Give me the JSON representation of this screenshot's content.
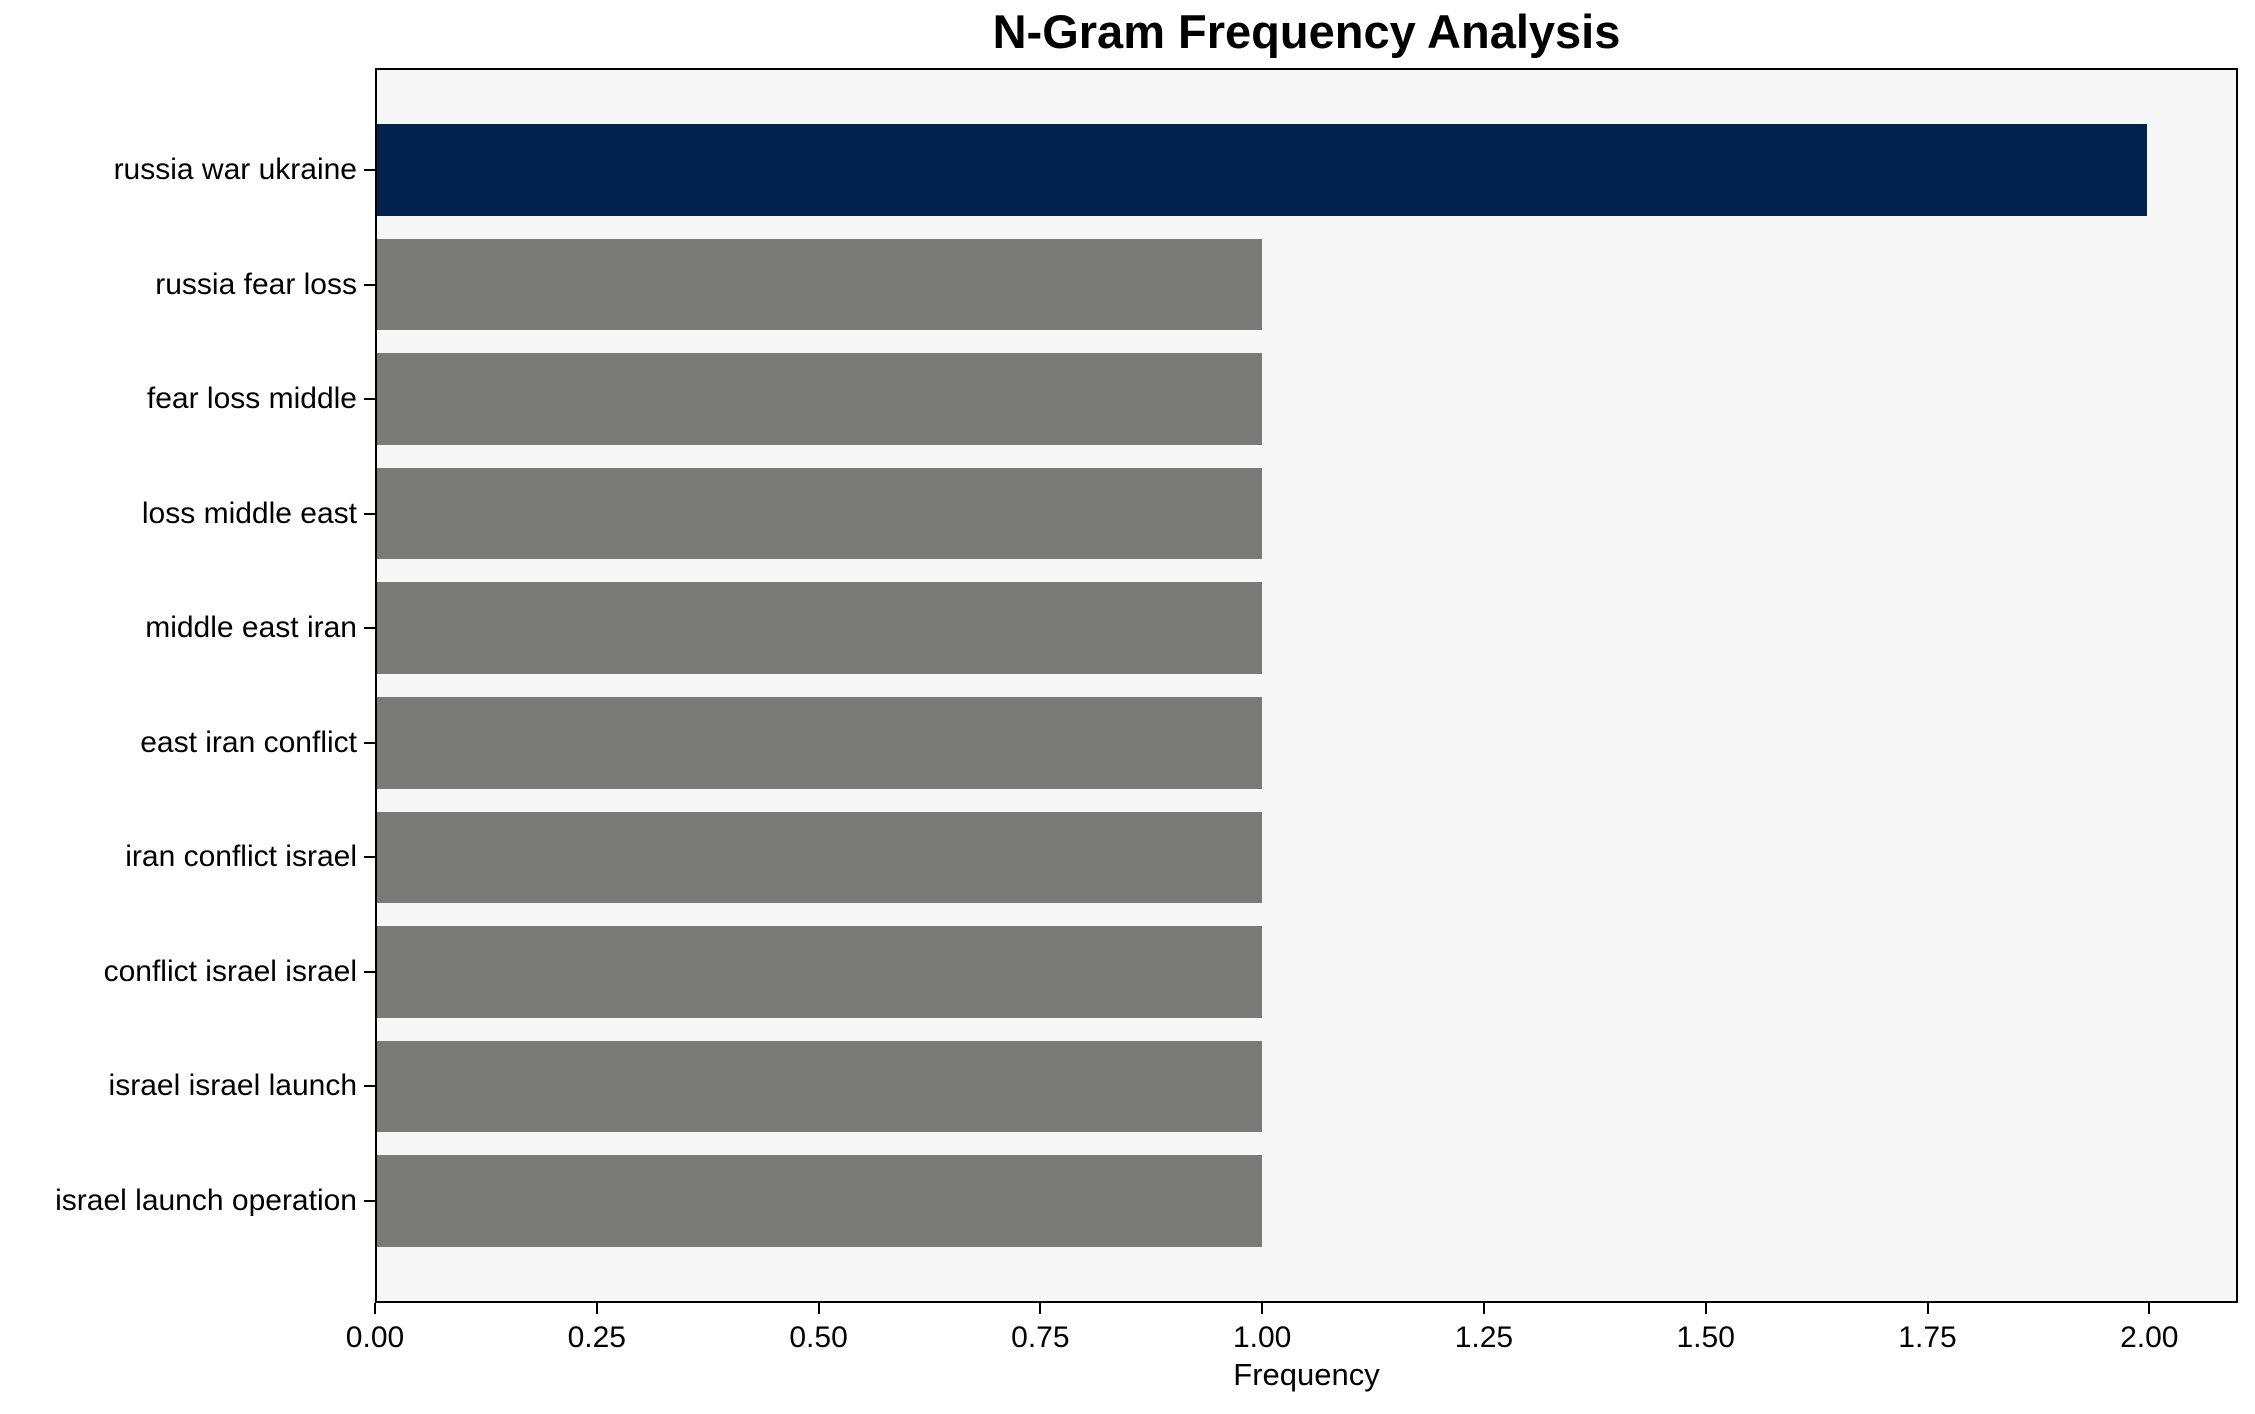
{
  "chart_data": {
    "type": "bar",
    "orientation": "horizontal",
    "title": "N-Gram Frequency Analysis",
    "xlabel": "Frequency",
    "ylabel": "",
    "categories": [
      "russia war ukraine",
      "russia fear loss",
      "fear loss middle",
      "loss middle east",
      "middle east iran",
      "east iran conflict",
      "iran conflict israel",
      "conflict israel israel",
      "israel israel launch",
      "israel launch operation"
    ],
    "values": [
      2.0,
      1.0,
      1.0,
      1.0,
      1.0,
      1.0,
      1.0,
      1.0,
      1.0,
      1.0
    ],
    "bar_colors": [
      "#00224d",
      "#7a7a77",
      "#7a7a77",
      "#7a7a77",
      "#7a7a77",
      "#7a7a77",
      "#7a7a77",
      "#7a7a77",
      "#7a7a77",
      "#7a7a77"
    ],
    "xlim": [
      0,
      2.1
    ],
    "xticks": {
      "values": [
        0,
        0.25,
        0.5,
        0.75,
        1.0,
        1.25,
        1.5,
        1.75,
        2.0
      ],
      "labels": [
        "0.00",
        "0.25",
        "0.50",
        "0.75",
        "1.00",
        "1.25",
        "1.50",
        "1.75",
        "2.00"
      ]
    },
    "grid": false,
    "legend_position": "none",
    "colors": {
      "highlight": "#00224d",
      "default": "#7a7a77",
      "plot_background": "#f7f7f7",
      "figure_background": "#ffffff",
      "text": "#000000",
      "spine": "#000000"
    }
  }
}
